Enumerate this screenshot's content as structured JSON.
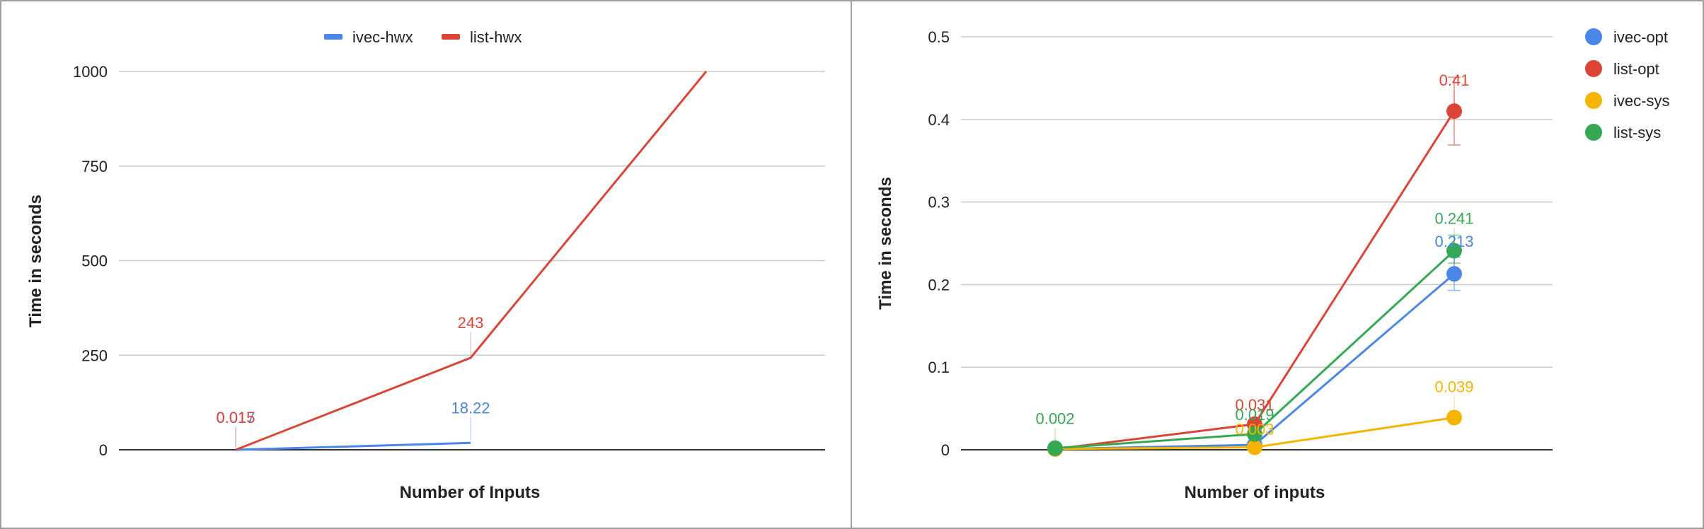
{
  "chart_data": [
    {
      "type": "line",
      "title": "",
      "xlabel": "Number of Inputs",
      "ylabel": "Time in seconds",
      "ylim": [
        0,
        1000
      ],
      "yticks": [
        "0",
        "250",
        "500",
        "750",
        "1000"
      ],
      "legend_position": "top",
      "point_markers": false,
      "series": [
        {
          "name": "ivec-hwx",
          "color": "#4a86e8",
          "values": [
            0.017,
            18.22
          ],
          "labels": [
            "0.017",
            "18.22"
          ]
        },
        {
          "name": "list-hwx",
          "color": "#db4437",
          "values": [
            0.015,
            243,
            1000
          ],
          "labels": [
            "0.015",
            "243",
            ""
          ]
        }
      ]
    },
    {
      "type": "line",
      "title": "",
      "xlabel": "Number of inputs",
      "ylabel": "Time in seconds",
      "ylim": [
        0,
        0.5
      ],
      "yticks": [
        "0",
        "0.1",
        "0.2",
        "0.3",
        "0.4",
        "0.5"
      ],
      "legend_position": "right",
      "point_markers": true,
      "series": [
        {
          "name": "ivec-opt",
          "color": "#4a86e8",
          "values": [
            0.001,
            0.006,
            0.213
          ],
          "labels": [
            "",
            "",
            "0.213"
          ],
          "error_bars": [
            null,
            null,
            [
              0.193,
              0.233
            ]
          ]
        },
        {
          "name": "list-opt",
          "color": "#db4437",
          "values": [
            0.001,
            0.031,
            0.41
          ],
          "labels": [
            "",
            "0.031",
            "0.41"
          ],
          "error_bars": [
            null,
            null,
            [
              0.369,
              0.451
            ]
          ]
        },
        {
          "name": "ivec-sys",
          "color": "#f4b400",
          "values": [
            0.001,
            0.003,
            0.039
          ],
          "labels": [
            "",
            "0.003",
            "0.039"
          ],
          "error_bars": [
            null,
            null,
            null
          ]
        },
        {
          "name": "list-sys",
          "color": "#34a853",
          "values": [
            0.002,
            0.019,
            0.241
          ],
          "labels": [
            "0.002",
            "0.019",
            "0.241"
          ],
          "error_bars": [
            null,
            null,
            [
              0.226,
              0.26
            ]
          ]
        }
      ]
    }
  ]
}
